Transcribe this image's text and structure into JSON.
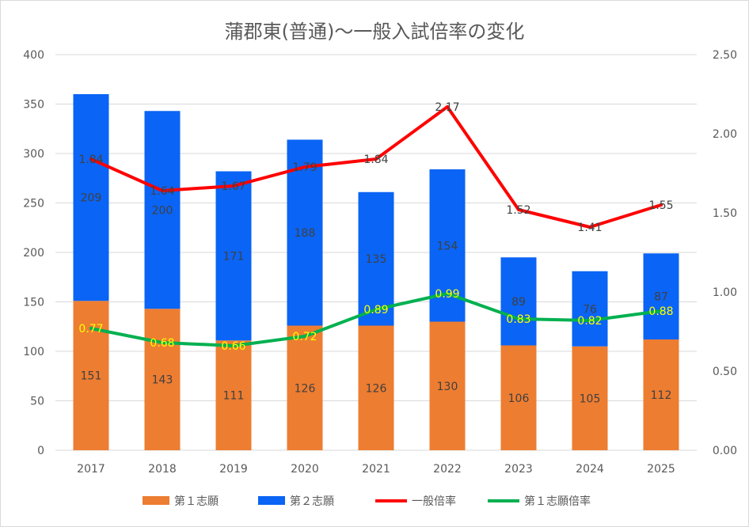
{
  "chart_data": {
    "type": "bar",
    "title": "蒲郡東(普通)〜一般入試倍率の変化",
    "categories": [
      "2017",
      "2018",
      "2019",
      "2020",
      "2021",
      "2022",
      "2023",
      "2024",
      "2025"
    ],
    "stacked": true,
    "series": [
      {
        "name": "第１志願",
        "type": "bar",
        "axis": "left",
        "color": "#ed7d31",
        "values": [
          151,
          143,
          111,
          126,
          126,
          130,
          106,
          105,
          112
        ]
      },
      {
        "name": "第２志願",
        "type": "bar",
        "axis": "left",
        "color": "#0a64f5",
        "values": [
          209,
          200,
          171,
          188,
          135,
          154,
          89,
          76,
          87
        ]
      },
      {
        "name": "一般倍率",
        "type": "line",
        "axis": "right",
        "color": "#ff0000",
        "values": [
          1.84,
          1.64,
          1.67,
          1.79,
          1.84,
          2.17,
          1.52,
          1.41,
          1.55
        ],
        "labels": [
          "1.84",
          "1.64",
          "1.67",
          "1.79",
          "1.84",
          "2.17",
          "1.52",
          "1.41",
          "1.55"
        ]
      },
      {
        "name": "第１志願倍率",
        "type": "line",
        "axis": "right",
        "color": "#00b050",
        "values": [
          0.77,
          0.68,
          0.66,
          0.72,
          0.89,
          0.99,
          0.83,
          0.82,
          0.88
        ],
        "labels": [
          "0.77",
          "0.68",
          "0.66",
          "0.72",
          "0.89",
          "0.99",
          "0.83",
          "0.82",
          "0.88"
        ]
      }
    ],
    "y_left": {
      "min": 0,
      "max": 400,
      "ticks": [
        "0",
        "50",
        "100",
        "150",
        "200",
        "250",
        "300",
        "350",
        "400"
      ]
    },
    "y_right": {
      "min": 0,
      "max": 2.5,
      "ticks": [
        "0.00",
        "0.50",
        "1.00",
        "1.50",
        "2.00",
        "2.50"
      ]
    },
    "grid": true,
    "legend": "bottom"
  }
}
